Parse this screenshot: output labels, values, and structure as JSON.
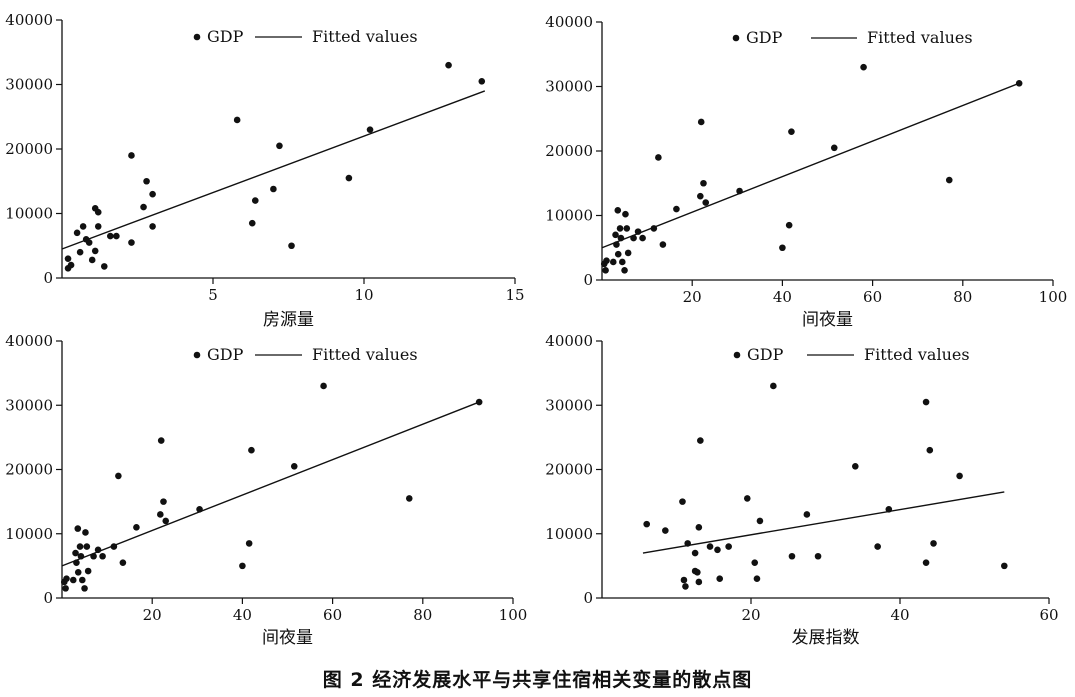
{
  "figure_caption": "图 2   经济发展水平与共享住宿相关变量的散点图",
  "chart_data": [
    {
      "type": "scatter",
      "xlabel": "房源量",
      "ylabel": "",
      "xlim": [
        0,
        15
      ],
      "ylim": [
        0,
        40000
      ],
      "x_ticks": [
        5,
        10,
        15
      ],
      "y_ticks": [
        0,
        10000,
        20000,
        30000,
        40000
      ],
      "legend": [
        "GDP",
        "Fitted values"
      ],
      "legend_position": "top",
      "series": [
        {
          "name": "GDP",
          "type": "scatter",
          "points": [
            [
              0.2,
              1500
            ],
            [
              0.2,
              3000
            ],
            [
              0.3,
              2000
            ],
            [
              0.5,
              7000
            ],
            [
              0.6,
              4000
            ],
            [
              0.7,
              8000
            ],
            [
              0.8,
              6000
            ],
            [
              0.9,
              5500
            ],
            [
              1.0,
              2800
            ],
            [
              1.1,
              10800
            ],
            [
              1.2,
              10200
            ],
            [
              1.2,
              8000
            ],
            [
              1.1,
              4200
            ],
            [
              1.4,
              1800
            ],
            [
              1.6,
              6500
            ],
            [
              1.8,
              6500
            ],
            [
              2.3,
              19000
            ],
            [
              2.3,
              5500
            ],
            [
              2.7,
              11000
            ],
            [
              2.8,
              15000
            ],
            [
              3.0,
              13000
            ],
            [
              3.0,
              8000
            ],
            [
              5.8,
              24500
            ],
            [
              6.3,
              8500
            ],
            [
              6.4,
              12000
            ],
            [
              7.0,
              13800
            ],
            [
              7.2,
              20500
            ],
            [
              7.6,
              5000
            ],
            [
              9.5,
              15500
            ],
            [
              10.2,
              23000
            ],
            [
              12.8,
              33000
            ],
            [
              13.9,
              30500
            ]
          ]
        },
        {
          "name": "Fitted values",
          "type": "line",
          "points": [
            [
              0.0,
              4500
            ],
            [
              14.0,
              29000
            ]
          ]
        }
      ]
    },
    {
      "type": "scatter",
      "xlabel": "间夜量",
      "ylabel": "",
      "xlim": [
        0,
        100
      ],
      "ylim": [
        0,
        40000
      ],
      "x_ticks": [
        20,
        40,
        60,
        80,
        100
      ],
      "y_ticks": [
        0,
        10000,
        20000,
        30000,
        40000
      ],
      "legend": [
        "GDP",
        "Fitted values"
      ],
      "legend_position": "top",
      "series": [
        {
          "name": "GDP",
          "type": "scatter",
          "points": [
            [
              0.5,
              2500
            ],
            [
              0.8,
              1500
            ],
            [
              1.0,
              3000
            ],
            [
              2.5,
              2800
            ],
            [
              3.0,
              7000
            ],
            [
              3.2,
              5500
            ],
            [
              3.5,
              10800
            ],
            [
              3.6,
              4000
            ],
            [
              4.0,
              8000
            ],
            [
              4.2,
              6500
            ],
            [
              4.5,
              2800
            ],
            [
              5.0,
              1500
            ],
            [
              5.2,
              10200
            ],
            [
              5.5,
              8000
            ],
            [
              5.8,
              4200
            ],
            [
              7.0,
              6500
            ],
            [
              8.0,
              7500
            ],
            [
              9.0,
              6500
            ],
            [
              11.5,
              8000
            ],
            [
              12.5,
              19000
            ],
            [
              13.5,
              5500
            ],
            [
              16.5,
              11000
            ],
            [
              21.8,
              13000
            ],
            [
              22.0,
              24500
            ],
            [
              22.5,
              15000
            ],
            [
              23.0,
              12000
            ],
            [
              30.5,
              13800
            ],
            [
              40.0,
              5000
            ],
            [
              41.5,
              8500
            ],
            [
              42.0,
              23000
            ],
            [
              51.5,
              20500
            ],
            [
              58.0,
              33000
            ],
            [
              77.0,
              15500
            ],
            [
              92.5,
              30500
            ]
          ]
        },
        {
          "name": "Fitted values",
          "type": "line",
          "points": [
            [
              0.0,
              5000
            ],
            [
              92.5,
              30500
            ]
          ]
        }
      ]
    },
    {
      "type": "scatter",
      "xlabel": "间夜量",
      "ylabel": "",
      "xlim": [
        0,
        100
      ],
      "ylim": [
        0,
        40000
      ],
      "x_ticks": [
        20,
        40,
        60,
        80,
        100
      ],
      "y_ticks": [
        0,
        10000,
        20000,
        30000,
        40000
      ],
      "legend": [
        "GDP",
        "Fitted values"
      ],
      "legend_position": "top",
      "series": [
        {
          "name": "GDP",
          "type": "scatter",
          "points": [
            [
              0.5,
              2500
            ],
            [
              0.8,
              1500
            ],
            [
              1.0,
              3000
            ],
            [
              2.5,
              2800
            ],
            [
              3.0,
              7000
            ],
            [
              3.2,
              5500
            ],
            [
              3.5,
              10800
            ],
            [
              3.6,
              4000
            ],
            [
              4.0,
              8000
            ],
            [
              4.2,
              6500
            ],
            [
              4.5,
              2800
            ],
            [
              5.0,
              1500
            ],
            [
              5.2,
              10200
            ],
            [
              5.5,
              8000
            ],
            [
              5.8,
              4200
            ],
            [
              7.0,
              6500
            ],
            [
              8.0,
              7500
            ],
            [
              9.0,
              6500
            ],
            [
              11.5,
              8000
            ],
            [
              12.5,
              19000
            ],
            [
              13.5,
              5500
            ],
            [
              16.5,
              11000
            ],
            [
              21.8,
              13000
            ],
            [
              22.0,
              24500
            ],
            [
              22.5,
              15000
            ],
            [
              23.0,
              12000
            ],
            [
              30.5,
              13800
            ],
            [
              40.0,
              5000
            ],
            [
              41.5,
              8500
            ],
            [
              42.0,
              23000
            ],
            [
              51.5,
              20500
            ],
            [
              58.0,
              33000
            ],
            [
              77.0,
              15500
            ],
            [
              92.5,
              30500
            ]
          ]
        },
        {
          "name": "Fitted values",
          "type": "line",
          "points": [
            [
              0.0,
              5000
            ],
            [
              92.5,
              30500
            ]
          ]
        }
      ]
    },
    {
      "type": "scatter",
      "xlabel": "发展指数",
      "ylabel": "",
      "xlim": [
        0,
        60
      ],
      "ylim": [
        0,
        40000
      ],
      "x_ticks": [
        20,
        40,
        60
      ],
      "y_ticks": [
        0,
        10000,
        20000,
        30000,
        40000
      ],
      "legend": [
        "GDP",
        "Fitted values"
      ],
      "legend_position": "top",
      "series": [
        {
          "name": "GDP",
          "type": "scatter",
          "points": [
            [
              6.0,
              11500
            ],
            [
              8.5,
              10500
            ],
            [
              10.8,
              15000
            ],
            [
              11.0,
              2800
            ],
            [
              11.2,
              1800
            ],
            [
              11.5,
              8500
            ],
            [
              12.5,
              7000
            ],
            [
              12.5,
              4200
            ],
            [
              12.8,
              4000
            ],
            [
              13.0,
              11000
            ],
            [
              13.0,
              2500
            ],
            [
              13.2,
              24500
            ],
            [
              14.5,
              8000
            ],
            [
              15.5,
              7500
            ],
            [
              15.8,
              3000
            ],
            [
              17.0,
              8000
            ],
            [
              19.5,
              15500
            ],
            [
              20.5,
              5500
            ],
            [
              20.8,
              3000
            ],
            [
              21.2,
              12000
            ],
            [
              23.0,
              33000
            ],
            [
              25.5,
              6500
            ],
            [
              27.5,
              13000
            ],
            [
              29.0,
              6500
            ],
            [
              34.0,
              20500
            ],
            [
              37.0,
              8000
            ],
            [
              38.5,
              13800
            ],
            [
              43.5,
              30500
            ],
            [
              43.5,
              5500
            ],
            [
              44.0,
              23000
            ],
            [
              44.5,
              8500
            ],
            [
              48.0,
              19000
            ],
            [
              54.0,
              5000
            ]
          ]
        },
        {
          "name": "Fitted values",
          "type": "line",
          "points": [
            [
              5.5,
              7000
            ],
            [
              54.0,
              16500
            ]
          ]
        }
      ]
    }
  ]
}
